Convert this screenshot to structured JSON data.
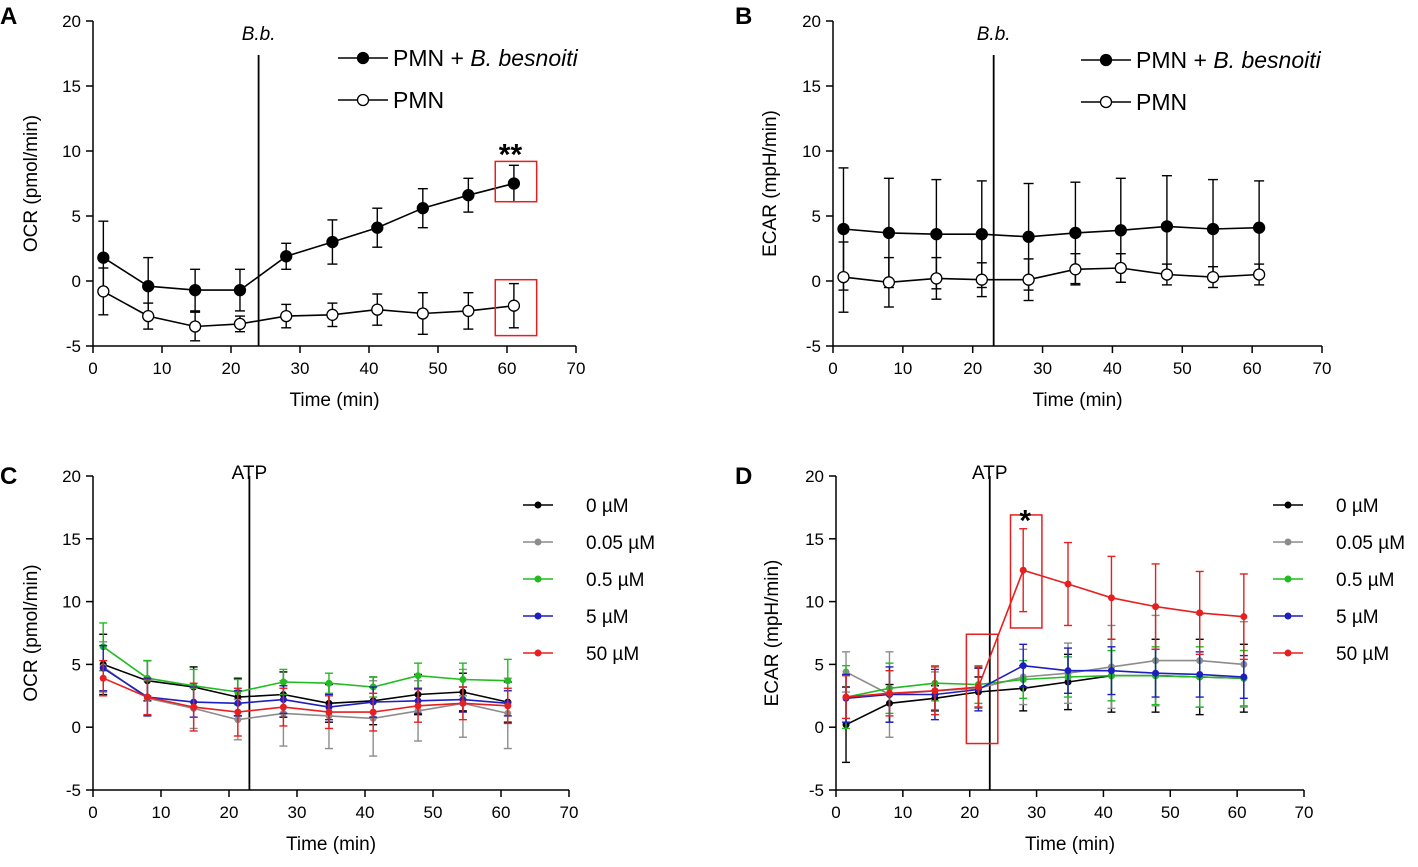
{
  "chart_data": [
    {
      "panel": "A",
      "type": "line",
      "panel_letter": "A",
      "xlabel": "Time (min)",
      "ylabel": "OCR (pmol/min)",
      "xlim": [
        0,
        70
      ],
      "ylim": [
        -5,
        20
      ],
      "xticks": [
        0,
        10,
        20,
        30,
        40,
        50,
        60,
        70
      ],
      "yticks": [
        -5,
        0,
        5,
        10,
        15,
        20
      ],
      "event": {
        "label": "B.b.",
        "x": 24
      },
      "legend_position": "top-right",
      "marker_style": "open-filled",
      "x": [
        1.5,
        8,
        14.8,
        21.3,
        28,
        34.7,
        41.2,
        47.8,
        54.4,
        61
      ],
      "series": [
        {
          "name": "PMN + ",
          "name_italic": "B. besnoiti",
          "color": "#000000",
          "filled": true,
          "values": [
            1.8,
            -0.4,
            -0.7,
            -0.7,
            1.9,
            3.0,
            4.1,
            5.6,
            6.6,
            7.5
          ],
          "errors": [
            2.8,
            2.2,
            1.6,
            1.6,
            1.0,
            1.7,
            1.5,
            1.5,
            1.3,
            1.4
          ]
        },
        {
          "name": "PMN",
          "name_italic": "",
          "color": "#000000",
          "filled": false,
          "values": [
            -0.8,
            -2.7,
            -3.5,
            -3.3,
            -2.7,
            -2.6,
            -2.2,
            -2.5,
            -2.3,
            -1.9
          ],
          "errors": [
            1.8,
            1.0,
            1.1,
            0.6,
            0.9,
            0.9,
            1.2,
            1.6,
            1.4,
            1.7
          ]
        }
      ],
      "annotations": [
        {
          "text": "**",
          "x": 60.5,
          "y": 9.9
        }
      ],
      "highlight_boxes": [
        {
          "x0": 58.3,
          "x1": 64.3,
          "y0": 6.1,
          "y1": 9.2
        },
        {
          "x0": 58.3,
          "x1": 64.3,
          "y0": -4.2,
          "y1": 0.1
        }
      ]
    },
    {
      "panel": "B",
      "type": "line",
      "panel_letter": "B",
      "xlabel": "Time (min)",
      "ylabel": "ECAR (mpH/min)",
      "xlim": [
        0,
        70
      ],
      "ylim": [
        -5,
        20
      ],
      "xticks": [
        0,
        10,
        20,
        30,
        40,
        50,
        60,
        70
      ],
      "yticks": [
        -5,
        0,
        5,
        10,
        15,
        20
      ],
      "event": {
        "label": "B.b.",
        "x": 23
      },
      "legend_position": "top-right",
      "marker_style": "open-filled",
      "x": [
        1.5,
        8,
        14.8,
        21.3,
        28,
        34.7,
        41.2,
        47.8,
        54.4,
        61
      ],
      "series": [
        {
          "name": "PMN + ",
          "name_italic": "B. besnoiti",
          "color": "#000000",
          "filled": true,
          "values": [
            4.0,
            3.7,
            3.6,
            3.6,
            3.4,
            3.7,
            3.9,
            4.2,
            4.0,
            4.1
          ],
          "errors": [
            4.7,
            4.2,
            4.2,
            4.1,
            4.1,
            3.9,
            4.0,
            3.9,
            3.8,
            3.6
          ]
        },
        {
          "name": "PMN",
          "name_italic": "",
          "color": "#000000",
          "filled": false,
          "values": [
            0.3,
            -0.1,
            0.2,
            0.1,
            0.1,
            0.9,
            1.0,
            0.5,
            0.3,
            0.5
          ],
          "errors": [
            2.7,
            1.9,
            1.6,
            1.3,
            1.6,
            1.2,
            1.1,
            0.8,
            0.8,
            0.8
          ]
        }
      ],
      "annotations": [],
      "highlight_boxes": []
    },
    {
      "panel": "C",
      "type": "line",
      "panel_letter": "C",
      "xlabel": "Time (min)",
      "ylabel": "OCR (pmol/min)",
      "xlim": [
        0,
        70
      ],
      "ylim": [
        -5,
        20
      ],
      "xticks": [
        0,
        10,
        20,
        30,
        40,
        50,
        60,
        70
      ],
      "yticks": [
        -5,
        0,
        5,
        10,
        15,
        20
      ],
      "event": {
        "label": "ATP",
        "x": 23
      },
      "legend_position": "right",
      "marker_style": "small-colored",
      "x": [
        1.5,
        8,
        14.8,
        21.3,
        28,
        34.7,
        41.2,
        47.8,
        54.4,
        61
      ],
      "series": [
        {
          "name": "0 µM",
          "color": "#000000",
          "values": [
            5.0,
            3.7,
            3.2,
            2.4,
            2.6,
            1.9,
            2.1,
            2.6,
            2.8,
            2.0
          ],
          "errors": [
            2.4,
            1.6,
            1.6,
            1.5,
            1.8,
            1.5,
            1.9,
            1.6,
            1.5,
            1.6
          ]
        },
        {
          "name": "0.05 µM",
          "color": "#8c8c8c",
          "values": [
            4.8,
            2.3,
            1.5,
            0.6,
            1.1,
            0.9,
            0.7,
            1.3,
            1.9,
            1.1
          ],
          "errors": [
            2.0,
            1.4,
            1.6,
            1.6,
            2.6,
            2.6,
            3.0,
            2.4,
            2.7,
            2.8
          ]
        },
        {
          "name": "0.5 µM",
          "color": "#22bb22",
          "values": [
            6.4,
            3.9,
            3.3,
            2.8,
            3.6,
            3.5,
            3.2,
            4.1,
            3.8,
            3.7
          ],
          "errors": [
            1.9,
            1.4,
            1.3,
            1.0,
            1.0,
            0.8,
            0.8,
            1.0,
            1.3,
            1.7
          ]
        },
        {
          "name": "5 µM",
          "color": "#1f1fbf",
          "values": [
            4.7,
            2.4,
            2.0,
            1.9,
            2.2,
            1.6,
            2.0,
            2.1,
            2.2,
            1.9
          ],
          "errors": [
            1.8,
            1.5,
            1.2,
            1.0,
            1.1,
            1.0,
            1.2,
            1.0,
            1.0,
            1.0
          ]
        },
        {
          "name": "50 µM",
          "color": "#e62020",
          "values": [
            3.9,
            2.4,
            1.6,
            1.2,
            1.6,
            1.2,
            1.2,
            1.7,
            1.9,
            1.7
          ],
          "errors": [
            1.4,
            1.4,
            1.9,
            1.9,
            1.5,
            1.3,
            1.5,
            1.3,
            1.3,
            1.4
          ]
        }
      ],
      "annotations": [],
      "highlight_boxes": []
    },
    {
      "panel": "D",
      "type": "line",
      "panel_letter": "D",
      "xlabel": "Time (min)",
      "ylabel": "ECAR (mpH/min)",
      "xlim": [
        0,
        70
      ],
      "ylim": [
        -5,
        20
      ],
      "xticks": [
        0,
        10,
        20,
        30,
        40,
        50,
        60,
        70
      ],
      "yticks": [
        -5,
        0,
        5,
        10,
        15,
        20
      ],
      "event": {
        "label": "ATP",
        "x": 23
      },
      "legend_position": "right",
      "marker_style": "small-colored",
      "x": [
        1.5,
        8,
        14.8,
        21.3,
        28,
        34.7,
        41.2,
        47.8,
        54.4,
        61
      ],
      "series": [
        {
          "name": "0 µM",
          "color": "#000000",
          "values": [
            0.2,
            1.9,
            2.3,
            2.8,
            3.1,
            3.6,
            4.1,
            4.1,
            4.0,
            3.9
          ],
          "errors": [
            3.0,
            1.5,
            1.0,
            1.2,
            1.8,
            2.2,
            2.9,
            2.9,
            3.0,
            2.7
          ]
        },
        {
          "name": "0.05 µM",
          "color": "#8c8c8c",
          "values": [
            4.4,
            2.6,
            2.9,
            3.1,
            4.0,
            4.3,
            4.8,
            5.3,
            5.3,
            5.0
          ],
          "errors": [
            1.6,
            3.4,
            1.5,
            1.6,
            2.2,
            2.4,
            3.3,
            3.6,
            3.7,
            3.4
          ]
        },
        {
          "name": "0.5 µM",
          "color": "#22bb22",
          "values": [
            2.4,
            3.1,
            3.5,
            3.4,
            3.8,
            4.0,
            4.1,
            4.1,
            4.0,
            3.9
          ],
          "errors": [
            2.5,
            2.0,
            1.4,
            1.5,
            1.5,
            1.6,
            2.0,
            2.3,
            2.4,
            2.2
          ]
        },
        {
          "name": "5 µM",
          "color": "#1f1fbf",
          "values": [
            2.3,
            2.6,
            2.6,
            3.0,
            4.9,
            4.5,
            4.5,
            4.3,
            4.2,
            4.0
          ],
          "errors": [
            1.9,
            2.2,
            2.0,
            1.7,
            1.7,
            1.8,
            1.9,
            1.9,
            1.8,
            1.7
          ]
        },
        {
          "name": "50 µM",
          "color": "#e62020",
          "values": [
            2.4,
            2.7,
            2.9,
            3.2,
            12.5,
            11.4,
            10.3,
            9.6,
            9.1,
            8.8
          ],
          "errors": [
            1.7,
            1.8,
            1.9,
            1.6,
            3.3,
            3.3,
            3.3,
            3.4,
            3.3,
            3.4
          ]
        }
      ],
      "annotations": [
        {
          "text": "*",
          "x": 28.3,
          "y": 16.6
        }
      ],
      "highlight_boxes": [
        {
          "x0": 19.5,
          "x1": 24.2,
          "y0": -1.3,
          "y1": 7.4
        },
        {
          "x0": 26.1,
          "x1": 30.8,
          "y0": 7.9,
          "y1": 16.9
        }
      ]
    }
  ]
}
